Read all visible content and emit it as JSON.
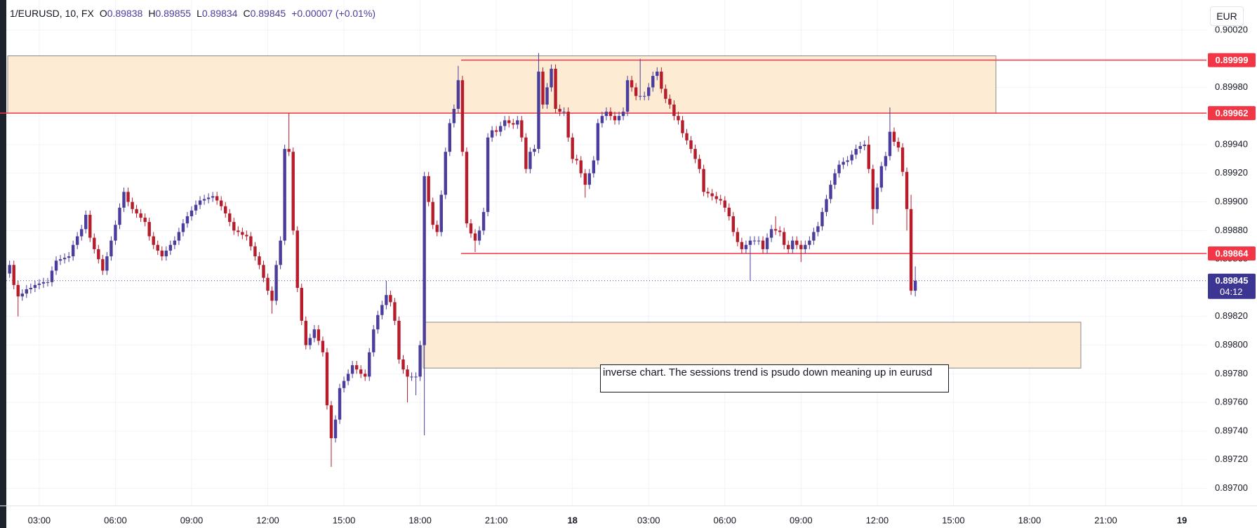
{
  "header": {
    "symbol": "1/EURUSD, 10, FX",
    "ohlc_labels": [
      "O",
      "H",
      "L",
      "C"
    ],
    "change": "+0.00007 (+0.01%)",
    "countdown": "04:12",
    "currency_button": "EUR"
  },
  "chart_data": {
    "type": "candlestick",
    "annotation": "inverse chart. The sessions trend is psudo down meaning up in eurusd",
    "up_color": "#4a3d9b",
    "down_color": "#b71c2b",
    "grid": true,
    "ylim": [
      0.89688,
      0.90041
    ],
    "yticks": [
      {
        "value": 0.897,
        "label": "0.89700"
      },
      {
        "value": 0.8972,
        "label": "0.89720"
      },
      {
        "value": 0.8974,
        "label": "0.89740"
      },
      {
        "value": 0.8976,
        "label": "0.89760"
      },
      {
        "value": 0.8978,
        "label": "0.89780"
      },
      {
        "value": 0.898,
        "label": "0.89800"
      },
      {
        "value": 0.8982,
        "label": "0.89820"
      },
      {
        "value": 0.8984,
        "label": "0.89840"
      },
      {
        "value": 0.8986,
        "label": "0.89860"
      },
      {
        "value": 0.8988,
        "label": "0.89880"
      },
      {
        "value": 0.899,
        "label": "0.89900"
      },
      {
        "value": 0.8992,
        "label": "0.89920"
      },
      {
        "value": 0.8994,
        "label": "0.89940"
      },
      {
        "value": 0.8996,
        "label": "0.89960"
      },
      {
        "value": 0.8998,
        "label": "0.89980"
      },
      {
        "value": 0.9,
        "label": "0.90000"
      },
      {
        "value": 0.9002,
        "label": "0.90020"
      }
    ],
    "xticks": [
      "03:00",
      "06:00",
      "09:00",
      "12:00",
      "15:00",
      "18:00",
      "21:00",
      "18",
      "03:00",
      "06:00",
      "09:00",
      "12:00",
      "15:00",
      "18:00",
      "21:00",
      "19"
    ],
    "hlines": [
      {
        "value": 0.89999,
        "color": "#f23645"
      },
      {
        "value": 0.89962,
        "color": "#f23645"
      },
      {
        "value": 0.89864,
        "color": "#f23645"
      }
    ],
    "zones": [
      {
        "top": 0.90002,
        "bottom": 0.89962,
        "color": "#fdebd3"
      },
      {
        "top": 0.89816,
        "bottom": 0.89784,
        "color": "#fdebd3"
      }
    ],
    "x": [
      "01:50",
      "02:00",
      "02:10",
      "02:20",
      "02:30",
      "02:40",
      "02:50",
      "03:00",
      "03:10",
      "03:20",
      "03:30",
      "03:40",
      "03:50",
      "04:00",
      "04:10",
      "04:20",
      "04:30",
      "04:40",
      "04:50",
      "05:00",
      "05:10",
      "05:20",
      "05:30",
      "05:40",
      "05:50",
      "06:00",
      "06:10",
      "06:20",
      "06:30",
      "06:40",
      "06:50",
      "07:00",
      "07:10",
      "07:20",
      "07:30",
      "07:40",
      "07:50",
      "08:00",
      "08:10",
      "08:20",
      "08:30",
      "08:40",
      "08:50",
      "09:00",
      "09:10",
      "09:20",
      "09:30",
      "09:40",
      "09:50",
      "10:00",
      "10:10",
      "10:20",
      "10:30",
      "10:40",
      "10:50",
      "11:00",
      "11:10",
      "11:20",
      "11:30",
      "11:40",
      "11:50",
      "12:00",
      "12:10",
      "12:20",
      "12:30",
      "12:40",
      "12:50",
      "13:00",
      "13:10",
      "13:20",
      "13:30",
      "13:40",
      "13:50",
      "14:00",
      "14:10",
      "14:20",
      "14:30",
      "14:40",
      "14:50",
      "15:00",
      "15:10",
      "15:20",
      "15:30",
      "15:40",
      "15:50",
      "16:00",
      "16:10",
      "16:20",
      "16:30",
      "16:40",
      "16:50",
      "17:00",
      "17:10",
      "17:20",
      "17:30",
      "17:40",
      "17:50",
      "18:00",
      "18:10",
      "18:20",
      "18:30",
      "18:40",
      "18:50",
      "19:00",
      "19:10",
      "19:20",
      "19:30",
      "19:40",
      "19:50",
      "20:00",
      "20:10",
      "20:20",
      "20:30",
      "20:40",
      "20:50",
      "21:00",
      "21:10",
      "21:20",
      "21:30",
      "21:40",
      "21:50",
      "22:00",
      "22:10",
      "22:20",
      "22:30",
      "22:40",
      "22:50",
      "23:00",
      "23:10",
      "23:20",
      "23:30",
      "23:40",
      "23:50",
      "00:00",
      "00:10",
      "00:20",
      "00:30",
      "00:40",
      "00:50",
      "01:00",
      "01:10",
      "01:20",
      "01:30",
      "01:40",
      "01:50",
      "02:00",
      "02:10",
      "02:20",
      "02:30",
      "02:40",
      "02:50",
      "03:00",
      "03:10",
      "03:20",
      "03:30",
      "03:40",
      "03:50",
      "04:00",
      "04:10",
      "04:20",
      "04:30",
      "04:40",
      "04:50",
      "05:00",
      "05:10",
      "05:20",
      "05:30",
      "05:40",
      "05:50",
      "06:00",
      "06:10",
      "06:20",
      "06:30",
      "06:40",
      "06:50",
      "07:00",
      "07:10",
      "07:20",
      "07:30",
      "07:40",
      "07:50",
      "08:00",
      "08:10",
      "08:20",
      "08:30",
      "08:40",
      "08:50",
      "09:00",
      "09:10",
      "09:20",
      "09:30",
      "09:40",
      "09:50",
      "10:00",
      "10:10",
      "10:20",
      "10:30",
      "10:40",
      "10:50",
      "11:00",
      "11:10",
      "11:20",
      "11:30",
      "11:40",
      "11:50",
      "12:00",
      "12:10",
      "12:20",
      "12:30",
      "12:40",
      "12:50",
      "13:00",
      "13:10",
      "13:20",
      "13:30"
    ],
    "open": [
      0.8985,
      0.89856,
      0.89842,
      0.89834,
      0.89836,
      0.89839,
      0.8984,
      0.89842,
      0.89843,
      0.89844,
      0.89844,
      0.89852,
      0.89859,
      0.8986,
      0.89861,
      0.89862,
      0.8987,
      0.89876,
      0.89881,
      0.89891,
      0.89875,
      0.89867,
      0.8986,
      0.89852,
      0.89862,
      0.89873,
      0.89884,
      0.89896,
      0.89907,
      0.899,
      0.89895,
      0.89892,
      0.89889,
      0.89886,
      0.89876,
      0.8987,
      0.89866,
      0.89862,
      0.89866,
      0.8987,
      0.89873,
      0.89879,
      0.89885,
      0.8989,
      0.89894,
      0.89898,
      0.89901,
      0.89902,
      0.89903,
      0.89904,
      0.89901,
      0.89897,
      0.89892,
      0.89886,
      0.8988,
      0.89879,
      0.89877,
      0.89876,
      0.89869,
      0.89862,
      0.89856,
      0.89847,
      0.89838,
      0.89831,
      0.89856,
      0.89873,
      0.89937,
      0.89935,
      0.8988,
      0.8984,
      0.89817,
      0.898,
      0.89805,
      0.89811,
      0.89803,
      0.89795,
      0.89758,
      0.89735,
      0.89748,
      0.8977,
      0.89775,
      0.8978,
      0.89786,
      0.89783,
      0.8978,
      0.89778,
      0.89795,
      0.89811,
      0.89821,
      0.89828,
      0.89835,
      0.8983,
      0.89817,
      0.8979,
      0.89783,
      0.89778,
      0.89778,
      0.89778,
      0.898,
      0.89918,
      0.899,
      0.89884,
      0.89879,
      0.89905,
      0.89935,
      0.89955,
      0.89965,
      0.89985,
      0.89935,
      0.89885,
      0.89878,
      0.89873,
      0.8988,
      0.89893,
      0.89945,
      0.8995,
      0.89949,
      0.89953,
      0.89957,
      0.89955,
      0.89954,
      0.89957,
      0.89945,
      0.89923,
      0.89935,
      0.89937,
      0.89991,
      0.89968,
      0.8998,
      0.89993,
      0.89965,
      0.89963,
      0.89963,
      0.89945,
      0.8993,
      0.89929,
      0.8992,
      0.89912,
      0.8992,
      0.89929,
      0.89955,
      0.8996,
      0.89963,
      0.8996,
      0.89957,
      0.8996,
      0.89963,
      0.89985,
      0.8998,
      0.89974,
      0.89974,
      0.89974,
      0.8998,
      0.89988,
      0.89991,
      0.89979,
      0.89972,
      0.89968,
      0.8996,
      0.89957,
      0.89948,
      0.89943,
      0.89937,
      0.8993,
      0.89923,
      0.89907,
      0.89906,
      0.89904,
      0.89902,
      0.89901,
      0.89896,
      0.8989,
      0.89879,
      0.89872,
      0.89867,
      0.8987,
      0.89873,
      0.89873,
      0.89873,
      0.89867,
      0.89875,
      0.89881,
      0.8988,
      0.89879,
      0.8987,
      0.89867,
      0.89873,
      0.8987,
      0.89867,
      0.8987,
      0.89873,
      0.89879,
      0.89883,
      0.89893,
      0.89902,
      0.89912,
      0.8992,
      0.89926,
      0.89928,
      0.89929,
      0.89933,
      0.89937,
      0.89939,
      0.8994,
      0.89923,
      0.89895,
      0.8991,
      0.89925,
      0.89932,
      0.89949,
      0.89942,
      0.89938,
      0.89921,
      0.89895,
      0.89838
    ],
    "high": [
      0.89859,
      0.89859,
      0.89845,
      0.89839,
      0.89842,
      0.89843,
      0.89845,
      0.89846,
      0.89847,
      0.89847,
      0.89855,
      0.89862,
      0.89863,
      0.89864,
      0.89865,
      0.89873,
      0.89879,
      0.89884,
      0.89894,
      0.89894,
      0.89878,
      0.8987,
      0.89863,
      0.89865,
      0.89876,
      0.89887,
      0.89899,
      0.8991,
      0.8991,
      0.89903,
      0.89898,
      0.89895,
      0.89892,
      0.89889,
      0.89879,
      0.89873,
      0.89869,
      0.89869,
      0.89873,
      0.89876,
      0.89882,
      0.89888,
      0.89893,
      0.89897,
      0.89901,
      0.89904,
      0.89905,
      0.89906,
      0.89907,
      0.89907,
      0.89904,
      0.899,
      0.89895,
      0.89889,
      0.89883,
      0.89882,
      0.8988,
      0.89879,
      0.89872,
      0.89865,
      0.89859,
      0.8985,
      0.89841,
      0.89859,
      0.89876,
      0.8994,
      0.89962,
      0.89938,
      0.89883,
      0.89843,
      0.8982,
      0.89808,
      0.89814,
      0.89814,
      0.89806,
      0.89798,
      0.89761,
      0.89751,
      0.89773,
      0.89778,
      0.89783,
      0.89789,
      0.89789,
      0.89786,
      0.89783,
      0.89798,
      0.89814,
      0.89824,
      0.89831,
      0.89845,
      0.89838,
      0.89833,
      0.8982,
      0.89793,
      0.89786,
      0.89781,
      0.89781,
      0.89803,
      0.89921,
      0.89921,
      0.89903,
      0.89887,
      0.89908,
      0.89938,
      0.89958,
      0.89968,
      0.89995,
      0.89988,
      0.89938,
      0.89888,
      0.89881,
      0.89883,
      0.89896,
      0.89948,
      0.89953,
      0.89953,
      0.89956,
      0.8996,
      0.8996,
      0.89958,
      0.8996,
      0.8996,
      0.89948,
      0.89938,
      0.8994,
      0.90004,
      0.89994,
      0.89983,
      0.89996,
      0.89996,
      0.89968,
      0.89966,
      0.89966,
      0.89948,
      0.89933,
      0.89932,
      0.89923,
      0.89923,
      0.89932,
      0.89958,
      0.89963,
      0.89966,
      0.89966,
      0.89963,
      0.89963,
      0.89966,
      0.89988,
      0.89988,
      0.89983,
      0.9,
      0.89977,
      0.89983,
      0.89991,
      0.89994,
      0.89994,
      0.89982,
      0.89975,
      0.89971,
      0.89963,
      0.8996,
      0.89951,
      0.89946,
      0.8994,
      0.89933,
      0.89926,
      0.8991,
      0.89909,
      0.89907,
      0.89905,
      0.89904,
      0.89899,
      0.89893,
      0.89882,
      0.89875,
      0.89873,
      0.89876,
      0.89876,
      0.89876,
      0.89876,
      0.89878,
      0.89884,
      0.8989,
      0.89883,
      0.89882,
      0.89873,
      0.89876,
      0.89876,
      0.89873,
      0.89873,
      0.89876,
      0.89882,
      0.89886,
      0.89896,
      0.89905,
      0.89915,
      0.89923,
      0.89929,
      0.89931,
      0.89932,
      0.89936,
      0.8994,
      0.89942,
      0.89943,
      0.89946,
      0.89926,
      0.89913,
      0.89928,
      0.89935,
      0.89966,
      0.89952,
      0.89945,
      0.89941,
      0.89924,
      0.89905,
      0.89855
    ],
    "low": [
      0.89847,
      0.89839,
      0.8982,
      0.89831,
      0.89833,
      0.89836,
      0.89837,
      0.89839,
      0.8984,
      0.89841,
      0.89841,
      0.89849,
      0.89856,
      0.89857,
      0.89858,
      0.89859,
      0.89867,
      0.89873,
      0.89878,
      0.89872,
      0.89864,
      0.89857,
      0.89849,
      0.89849,
      0.89859,
      0.8987,
      0.89881,
      0.89893,
      0.89897,
      0.89892,
      0.89889,
      0.89886,
      0.89883,
      0.89873,
      0.89867,
      0.89863,
      0.89859,
      0.89859,
      0.89863,
      0.89867,
      0.8987,
      0.89876,
      0.89882,
      0.89887,
      0.89891,
      0.89895,
      0.89898,
      0.89899,
      0.899,
      0.89898,
      0.89894,
      0.89889,
      0.89883,
      0.89877,
      0.89876,
      0.89874,
      0.89873,
      0.89866,
      0.89859,
      0.89853,
      0.89844,
      0.89835,
      0.89822,
      0.89828,
      0.89853,
      0.8987,
      0.89932,
      0.89877,
      0.89837,
      0.89814,
      0.89797,
      0.89797,
      0.89802,
      0.898,
      0.89792,
      0.89755,
      0.89715,
      0.89732,
      0.89745,
      0.89767,
      0.89772,
      0.89777,
      0.8978,
      0.89777,
      0.89775,
      0.89775,
      0.89792,
      0.89808,
      0.89818,
      0.89825,
      0.89827,
      0.89814,
      0.89787,
      0.8978,
      0.8976,
      0.89775,
      0.89765,
      0.89775,
      0.89737,
      0.89897,
      0.89881,
      0.89876,
      0.89876,
      0.89902,
      0.89932,
      0.89952,
      0.89962,
      0.89932,
      0.89882,
      0.89875,
      0.89865,
      0.8987,
      0.89877,
      0.8989,
      0.89942,
      0.89946,
      0.89946,
      0.8995,
      0.89952,
      0.89951,
      0.89951,
      0.89942,
      0.8992,
      0.8992,
      0.89932,
      0.89934,
      0.89965,
      0.89965,
      0.89977,
      0.89962,
      0.8996,
      0.8996,
      0.89942,
      0.89927,
      0.89926,
      0.89917,
      0.89903,
      0.89909,
      0.89917,
      0.89926,
      0.89952,
      0.89957,
      0.89957,
      0.89954,
      0.89954,
      0.89957,
      0.8996,
      0.89977,
      0.89971,
      0.89971,
      0.89971,
      0.89971,
      0.89977,
      0.89985,
      0.89976,
      0.89969,
      0.89965,
      0.89957,
      0.89954,
      0.89945,
      0.8994,
      0.89934,
      0.89927,
      0.8992,
      0.89904,
      0.89903,
      0.89901,
      0.89899,
      0.89898,
      0.89893,
      0.89887,
      0.89876,
      0.89869,
      0.89864,
      0.89864,
      0.89845,
      0.8987,
      0.8987,
      0.89864,
      0.89864,
      0.89872,
      0.89877,
      0.89876,
      0.89867,
      0.89864,
      0.89864,
      0.89867,
      0.89858,
      0.89864,
      0.89867,
      0.8987,
      0.89876,
      0.8988,
      0.8989,
      0.89899,
      0.89909,
      0.89917,
      0.89923,
      0.89925,
      0.89926,
      0.8993,
      0.89934,
      0.89936,
      0.8992,
      0.89884,
      0.89892,
      0.89907,
      0.89922,
      0.89929,
      0.89939,
      0.89935,
      0.89918,
      0.8988,
      0.89835,
      0.89834
    ],
    "close": [
      0.89856,
      0.89842,
      0.89834,
      0.89836,
      0.89839,
      0.8984,
      0.89842,
      0.89843,
      0.89844,
      0.89844,
      0.89852,
      0.89859,
      0.8986,
      0.89861,
      0.89862,
      0.8987,
      0.89876,
      0.89881,
      0.89891,
      0.89875,
      0.89867,
      0.8986,
      0.89852,
      0.89862,
      0.89873,
      0.89884,
      0.89896,
      0.89907,
      0.899,
      0.89895,
      0.89892,
      0.89889,
      0.89886,
      0.89876,
      0.8987,
      0.89866,
      0.89862,
      0.89866,
      0.8987,
      0.89873,
      0.89879,
      0.89885,
      0.8989,
      0.89894,
      0.89898,
      0.89901,
      0.89902,
      0.89903,
      0.89904,
      0.89901,
      0.89897,
      0.89892,
      0.89886,
      0.8988,
      0.89879,
      0.89877,
      0.89876,
      0.89869,
      0.89862,
      0.89856,
      0.89847,
      0.89838,
      0.89831,
      0.89856,
      0.89873,
      0.89937,
      0.89935,
      0.8988,
      0.8984,
      0.89817,
      0.898,
      0.89805,
      0.89811,
      0.89803,
      0.89795,
      0.89758,
      0.89735,
      0.89748,
      0.8977,
      0.89775,
      0.8978,
      0.89786,
      0.89783,
      0.8978,
      0.89778,
      0.89795,
      0.89811,
      0.89821,
      0.89828,
      0.89835,
      0.8983,
      0.89817,
      0.8979,
      0.89783,
      0.89778,
      0.89778,
      0.89778,
      0.898,
      0.89918,
      0.899,
      0.89884,
      0.89879,
      0.89905,
      0.89935,
      0.89955,
      0.89965,
      0.89985,
      0.89935,
      0.89885,
      0.89878,
      0.89873,
      0.8988,
      0.89893,
      0.89945,
      0.8995,
      0.89949,
      0.89953,
      0.89957,
      0.89955,
      0.89954,
      0.89957,
      0.89945,
      0.89923,
      0.89935,
      0.89937,
      0.89991,
      0.89968,
      0.8998,
      0.89993,
      0.89965,
      0.89963,
      0.89963,
      0.89945,
      0.8993,
      0.89929,
      0.8992,
      0.89912,
      0.8992,
      0.89929,
      0.89955,
      0.8996,
      0.89963,
      0.8996,
      0.89957,
      0.8996,
      0.89963,
      0.89985,
      0.8998,
      0.89974,
      0.89974,
      0.89974,
      0.8998,
      0.89988,
      0.89991,
      0.89979,
      0.89972,
      0.89968,
      0.8996,
      0.89957,
      0.89948,
      0.89943,
      0.89937,
      0.8993,
      0.89923,
      0.89907,
      0.89906,
      0.89904,
      0.89902,
      0.89901,
      0.89896,
      0.8989,
      0.89879,
      0.89872,
      0.89867,
      0.8987,
      0.89873,
      0.89873,
      0.89873,
      0.89867,
      0.89875,
      0.89881,
      0.8988,
      0.89879,
      0.8987,
      0.89867,
      0.89873,
      0.8987,
      0.89867,
      0.8987,
      0.89873,
      0.89879,
      0.89883,
      0.89893,
      0.89902,
      0.89912,
      0.8992,
      0.89926,
      0.89928,
      0.89929,
      0.89933,
      0.89937,
      0.89939,
      0.8994,
      0.89923,
      0.89895,
      0.8991,
      0.89925,
      0.89932,
      0.89949,
      0.89942,
      0.89938,
      0.89921,
      0.89895,
      0.89838,
      0.89845
    ]
  }
}
